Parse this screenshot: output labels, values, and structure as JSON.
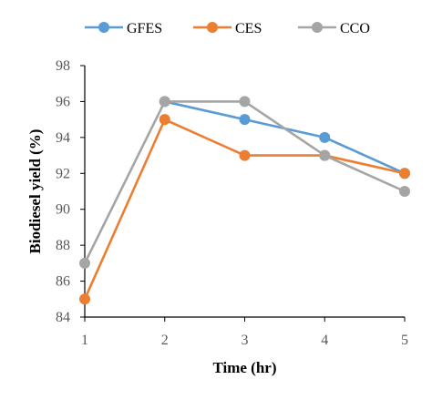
{
  "chart_data": {
    "type": "line",
    "title": "",
    "xlabel": "Time (hr)",
    "ylabel": "Biodiesel yield (%)",
    "x": [
      1,
      2,
      3,
      4,
      5
    ],
    "x_tick_labels": [
      "1",
      "2",
      "3",
      "4",
      "5"
    ],
    "ylim": [
      84,
      98
    ],
    "y_ticks": [
      84,
      86,
      88,
      90,
      92,
      94,
      96,
      98
    ],
    "y_tick_labels": [
      "84",
      "86",
      "88",
      "90",
      "92",
      "94",
      "96",
      "98"
    ],
    "grid": false,
    "legend_position": "top",
    "series": [
      {
        "name": "GFES",
        "color": "#5B9BD5",
        "values": [
          null,
          96,
          95,
          94,
          92
        ]
      },
      {
        "name": "CES",
        "color": "#ED7D31",
        "values": [
          85,
          95,
          93,
          93,
          92
        ]
      },
      {
        "name": "CCO",
        "color": "#A5A5A5",
        "values": [
          87,
          96,
          96,
          93,
          91
        ]
      }
    ]
  }
}
